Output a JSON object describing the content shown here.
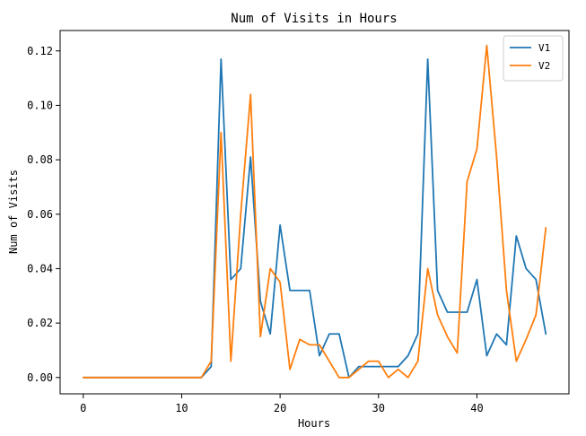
{
  "chart_data": {
    "type": "line",
    "title": "Num of Visits in Hours",
    "xlabel": "Hours",
    "ylabel": "Num of Visits",
    "xlim": [
      -2.35,
      49.35
    ],
    "ylim": [
      -0.006,
      0.1275
    ],
    "xticks": [
      0,
      10,
      20,
      30,
      40
    ],
    "xtick_labels": [
      "0",
      "10",
      "20",
      "30",
      "40"
    ],
    "yticks": [
      0,
      0.02,
      0.04,
      0.06,
      0.08,
      0.1,
      0.12
    ],
    "ytick_labels": [
      "0.00",
      "0.02",
      "0.04",
      "0.06",
      "0.08",
      "0.10",
      "0.12"
    ],
    "grid": false,
    "legend_position": "top-right",
    "x": [
      0,
      1,
      2,
      3,
      4,
      5,
      6,
      7,
      8,
      9,
      10,
      11,
      12,
      13,
      14,
      15,
      16,
      17,
      18,
      19,
      20,
      21,
      22,
      23,
      24,
      25,
      26,
      27,
      28,
      29,
      30,
      31,
      32,
      33,
      34,
      35,
      36,
      37,
      38,
      39,
      40,
      41,
      42,
      43,
      44,
      45,
      46,
      47
    ],
    "series": [
      {
        "name": "V1",
        "color": "#1f77b4",
        "values": [
          0,
          0,
          0,
          0,
          0,
          0,
          0,
          0,
          0,
          0,
          0,
          0,
          0,
          0.004,
          0.117,
          0.036,
          0.04,
          0.081,
          0.028,
          0.016,
          0.056,
          0.032,
          0.032,
          0.032,
          0.008,
          0.016,
          0.016,
          0,
          0.004,
          0.004,
          0.004,
          0.004,
          0.004,
          0.008,
          0.016,
          0.117,
          0.032,
          0.024,
          0.024,
          0.024,
          0.036,
          0.008,
          0.016,
          0.012,
          0.052,
          0.04,
          0.036,
          0.016
        ]
      },
      {
        "name": "V2",
        "color": "#ff7f0e",
        "values": [
          0,
          0,
          0,
          0,
          0,
          0,
          0,
          0,
          0,
          0,
          0,
          0,
          0,
          0.006,
          0.09,
          0.006,
          0.06,
          0.104,
          0.015,
          0.04,
          0.035,
          0.003,
          0.014,
          0.012,
          0.012,
          0.006,
          0,
          0,
          0.003,
          0.006,
          0.006,
          0,
          0.003,
          0,
          0.006,
          0.04,
          0.023,
          0.015,
          0.009,
          0.072,
          0.084,
          0.122,
          0.081,
          0.032,
          0.006,
          0.014,
          0.023,
          0.055
        ]
      }
    ]
  }
}
